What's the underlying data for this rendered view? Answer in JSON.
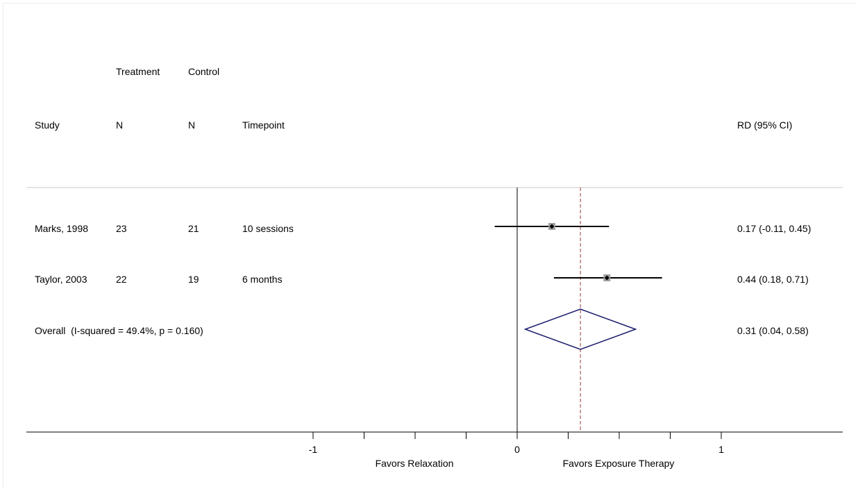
{
  "chart_data": {
    "type": "forest",
    "columns": {
      "study": "Study",
      "treatment_top": "Treatment",
      "treatment_bottom": "N",
      "control_top": "Control",
      "control_bottom": "N",
      "timepoint": "Timepoint",
      "effect": "RD (95% CI)"
    },
    "studies": [
      {
        "name": "Marks, 1998",
        "treatment_n": "23",
        "control_n": "21",
        "timepoint": "10 sessions",
        "rd": 0.17,
        "lower": -0.11,
        "upper": 0.45,
        "label": "0.17 (-0.11, 0.45)"
      },
      {
        "name": "Taylor, 2003",
        "treatment_n": "22",
        "control_n": "19",
        "timepoint": "6 months",
        "rd": 0.44,
        "lower": 0.18,
        "upper": 0.71,
        "label": "0.44 (0.18, 0.71)"
      }
    ],
    "overall": {
      "label_text": "Overall  (I-squared = 49.4%, p = 0.160)",
      "rd": 0.31,
      "lower": 0.04,
      "upper": 0.58,
      "label": "0.31 (0.04, 0.58)"
    },
    "x_axis": {
      "range": [
        -1.0,
        1.0
      ],
      "major_ticks": [
        -1,
        0,
        1
      ],
      "major_labels": [
        "-1",
        "0",
        "1"
      ],
      "minor_ticks": [
        -0.75,
        -0.5,
        -0.25,
        0.25,
        0.5,
        0.75
      ]
    },
    "favors_left": "Favors Relaxation",
    "favors_right": "Favors Exposure Therapy",
    "colors": {
      "diamond": "#1a1a6e",
      "overall_line": "#9b3a3a",
      "square": "#a0a0a0"
    }
  }
}
